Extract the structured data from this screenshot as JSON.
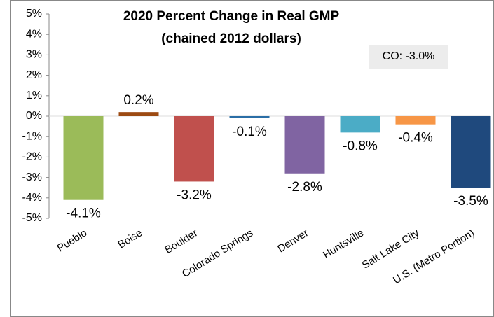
{
  "chart_data": {
    "type": "bar",
    "title": [
      "2020 Percent Change in Real GMP",
      "(chained 2012 dollars)"
    ],
    "annotation": "CO: -3.0%",
    "categories": [
      "Pueblo",
      "Boise",
      "Boulder",
      "Colorado Springs",
      "Denver",
      "Huntsville",
      "Salt Lake City",
      "U.S. (Metro Portion)"
    ],
    "values": [
      -4.1,
      0.2,
      -3.2,
      -0.1,
      -2.8,
      -0.8,
      -0.4,
      -3.5
    ],
    "value_labels": [
      "-4.1%",
      "0.2%",
      "-3.2%",
      "-0.1%",
      "-2.8%",
      "-0.8%",
      "-0.4%",
      "-3.5%"
    ],
    "colors": [
      "#9bbb59",
      "#9c4a12",
      "#c0504d",
      "#2a6ea6",
      "#8064a2",
      "#4bacc6",
      "#f79646",
      "#1f497d"
    ],
    "ylim": [
      -5,
      5
    ],
    "yticks": [
      {
        "value": -5,
        "label": "-5%"
      },
      {
        "value": -4,
        "label": "-4%"
      },
      {
        "value": -3,
        "label": "-3%"
      },
      {
        "value": -2,
        "label": "-2%"
      },
      {
        "value": -1,
        "label": "-1%"
      },
      {
        "value": 0,
        "label": "0%"
      },
      {
        "value": 1,
        "label": "1%"
      },
      {
        "value": 2,
        "label": "2%"
      },
      {
        "value": 3,
        "label": "3%"
      },
      {
        "value": 4,
        "label": "4%"
      },
      {
        "value": 5,
        "label": "5%"
      }
    ],
    "grid": false
  }
}
